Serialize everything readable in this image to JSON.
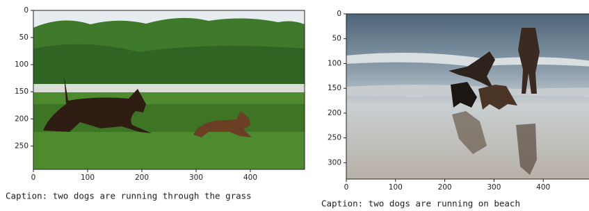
{
  "chart_data": [
    {
      "type": "image",
      "caption": "Caption: two dogs are running through the grass",
      "xlim": [
        0,
        500
      ],
      "ylim": [
        293,
        0
      ],
      "xticks": [
        0,
        100,
        200,
        300,
        400
      ],
      "yticks": [
        0,
        50,
        100,
        150,
        200,
        250
      ]
    },
    {
      "type": "image",
      "caption": "Caption: two dogs are running on beach",
      "xlim": [
        0,
        500
      ],
      "ylim": [
        333,
        0
      ],
      "xticks": [
        0,
        100,
        200,
        300,
        400
      ],
      "yticks": [
        0,
        50,
        100,
        150,
        200,
        250,
        300
      ]
    }
  ]
}
